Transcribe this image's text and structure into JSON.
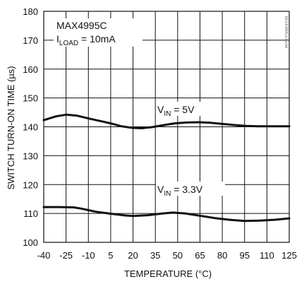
{
  "chart_data": {
    "type": "line",
    "title": "",
    "xlabel": "TEMPERATURE (°C)",
    "ylabel": "SWITCH TURN-ON TIME (µs)",
    "xlim": [
      -40,
      125
    ],
    "ylim": [
      100,
      180
    ],
    "x_ticks": [
      -40,
      -25,
      -10,
      5,
      20,
      35,
      50,
      65,
      80,
      95,
      110,
      125
    ],
    "y_ticks": [
      100,
      110,
      120,
      130,
      140,
      150,
      160,
      170,
      180
    ],
    "grid": true,
    "line_color": "#111111",
    "series": [
      {
        "name": "VIN = 5V",
        "label": {
          "main": "V",
          "sub": "IN",
          "rest": " = 5V"
        },
        "x": [
          -40,
          -32,
          -25,
          -18,
          -10,
          -2,
          5,
          12,
          20,
          26,
          33,
          41,
          48,
          56,
          64,
          72,
          80,
          88,
          96,
          104,
          112,
          125
        ],
        "y": [
          142.3,
          143.6,
          144.2,
          143.9,
          142.9,
          142.0,
          141.2,
          140.2,
          139.6,
          139.5,
          139.9,
          140.6,
          141.2,
          141.5,
          141.6,
          141.4,
          141.0,
          140.6,
          140.3,
          140.2,
          140.2,
          140.2
        ]
      },
      {
        "name": "VIN = 3.3V",
        "label": {
          "main": "V",
          "sub": "IN",
          "rest": " = 3.3V"
        },
        "x": [
          -40,
          -30,
          -20,
          -15,
          -5,
          5,
          15,
          20,
          30,
          40,
          47,
          55,
          65,
          75,
          85,
          95,
          105,
          115,
          125
        ],
        "y": [
          112.2,
          112.2,
          112.1,
          111.7,
          110.6,
          109.9,
          109.3,
          109.1,
          109.4,
          110.0,
          110.3,
          110.0,
          109.2,
          108.4,
          107.8,
          107.4,
          107.5,
          107.8,
          108.3
        ]
      }
    ],
    "annotation": {
      "line1": "MAX4995C",
      "line2_main": "I",
      "line2_sub": "LOAD",
      "line2_rest": " = 10mA"
    },
    "watermark": "MAX4995A toc04"
  }
}
